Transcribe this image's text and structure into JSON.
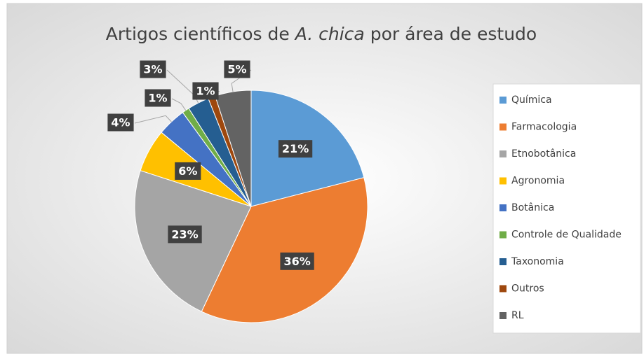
{
  "chart_data": {
    "type": "pie",
    "title": [
      "Artigos científicos de",
      "A. chica",
      "por área de estudo"
    ],
    "categories": [
      "Química",
      "Farmacologia",
      "Etnobotânica",
      "Agronomia",
      "Botânica",
      "Controle de Qualidade",
      "Taxonomia",
      "Outros",
      "RL"
    ],
    "values": [
      21,
      36,
      23,
      6,
      4,
      1,
      3,
      1,
      5
    ],
    "value_labels": [
      "21%",
      "36%",
      "23%",
      "6%",
      "4%",
      "1%",
      "3%",
      "1%",
      "5%"
    ],
    "colors": [
      "#5b9bd5",
      "#ed7d31",
      "#a5a5a5",
      "#ffc000",
      "#4472c4",
      "#70ad47",
      "#255e91",
      "#9e480e",
      "#636363"
    ],
    "legend": "right"
  }
}
